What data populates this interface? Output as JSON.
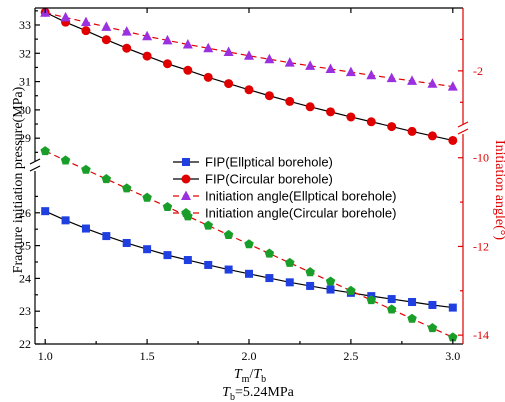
{
  "chart_data": {
    "type": "line",
    "x": [
      1.0,
      1.1,
      1.2,
      1.3,
      1.4,
      1.5,
      1.6,
      1.7,
      1.8,
      1.9,
      2.0,
      2.1,
      2.2,
      2.3,
      2.4,
      2.5,
      2.6,
      2.7,
      2.8,
      2.9,
      3.0
    ],
    "x_ticks": [
      "1.0",
      "1.5",
      "2.0",
      "2.5",
      "3.0"
    ],
    "xlim": [
      0.95,
      3.05
    ],
    "x_label_main": "T",
    "x_label_sub1": "m",
    "x_label_sep": "/",
    "x_label_var2": "T",
    "x_label_sub2": "b",
    "note_var": "T",
    "note_sub": "b",
    "note_value": "=5.24MPa",
    "left_axis": {
      "label": "Fracture initiation pressure(MPa)",
      "ticks_lower": [
        "22",
        "23",
        "24",
        "25",
        "26"
      ],
      "ticks_upper": [
        "29",
        "30",
        "31",
        "32",
        "33"
      ],
      "lower_range": [
        22,
        27
      ],
      "upper_range": [
        28.3,
        33.6
      ],
      "color": "#000000"
    },
    "right_axis": {
      "label": "Initiation angle(°)",
      "ticks_lower": [
        "-10",
        "-12",
        "-14"
      ],
      "ticks_upper": [
        "-2"
      ],
      "lower_range": [
        -14.2,
        -9.6
      ],
      "upper_range": [
        -3.5,
        0.0
      ],
      "color": "#e00000"
    },
    "series": [
      {
        "name": "FIP(Ellptical borehole)",
        "axis": "left",
        "color": "#1f3fe0",
        "line": "solid",
        "line_color": "#000000",
        "marker": "square",
        "values": [
          26.05,
          25.77,
          25.52,
          25.29,
          25.08,
          24.89,
          24.71,
          24.56,
          24.41,
          24.27,
          24.14,
          24.01,
          23.88,
          23.77,
          23.66,
          23.56,
          23.46,
          23.37,
          23.28,
          23.19,
          23.11
        ]
      },
      {
        "name": "FIP(Circular borehole)",
        "axis": "left",
        "color": "#e00000",
        "line": "solid",
        "line_color": "#000000",
        "marker": "circle",
        "values": [
          33.45,
          33.1,
          32.8,
          32.48,
          32.18,
          31.9,
          31.63,
          31.4,
          31.15,
          30.93,
          30.71,
          30.5,
          30.3,
          30.11,
          29.93,
          29.75,
          29.58,
          29.41,
          29.24,
          29.08,
          28.92
        ]
      },
      {
        "name": "Initiation angle(Ellptical borehole)",
        "axis": "right",
        "color": "#9b30e0",
        "line": "dashed",
        "line_color": "#e00000",
        "marker": "triangle",
        "values": [
          -0.15,
          -0.3,
          -0.45,
          -0.6,
          -0.75,
          -0.9,
          -1.03,
          -1.16,
          -1.28,
          -1.4,
          -1.52,
          -1.63,
          -1.74,
          -1.84,
          -1.94,
          -2.04,
          -2.14,
          -2.23,
          -2.32,
          -2.41,
          -2.5
        ]
      },
      {
        "name": "Initiation angle(Circular borehole)",
        "axis": "right",
        "color": "#1a9e2a",
        "line": "dashed",
        "line_color": "#e00000",
        "marker": "pentagon",
        "values": [
          -9.85,
          -10.06,
          -10.27,
          -10.48,
          -10.69,
          -10.9,
          -11.11,
          -11.32,
          -11.53,
          -11.74,
          -11.95,
          -12.16,
          -12.37,
          -12.58,
          -12.79,
          -13.0,
          -13.21,
          -13.42,
          -13.63,
          -13.84,
          -14.05
        ]
      }
    ],
    "legend_position": "center"
  }
}
